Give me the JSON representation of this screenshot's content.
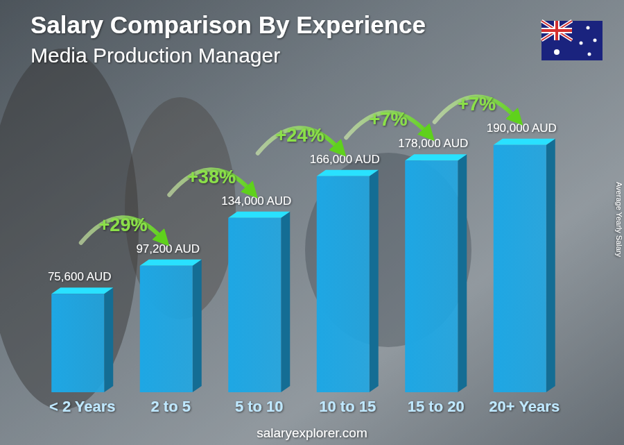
{
  "chart_data": {
    "type": "bar",
    "title": "Salary Comparison By Experience",
    "subtitle": "Media Production Manager",
    "y_label": "Average Yearly Salary",
    "source": "salaryexplorer.com",
    "categories": [
      "< 2 Years",
      "2 to 5",
      "5 to 10",
      "10 to 15",
      "15 to 20",
      "20+ Years"
    ],
    "values": [
      75600,
      97200,
      134000,
      166000,
      178000,
      190000
    ],
    "value_labels": [
      "75,600 AUD",
      "97,200 AUD",
      "134,000 AUD",
      "166,000 AUD",
      "178,000 AUD",
      "190,000 AUD"
    ],
    "annotations": [
      "+29%",
      "+38%",
      "+24%",
      "+7%",
      "+7%"
    ],
    "color": "#1ea7e4",
    "ylim": [
      0,
      200000
    ],
    "data_labels": true,
    "tick_labels": "x",
    "grid": false
  }
}
